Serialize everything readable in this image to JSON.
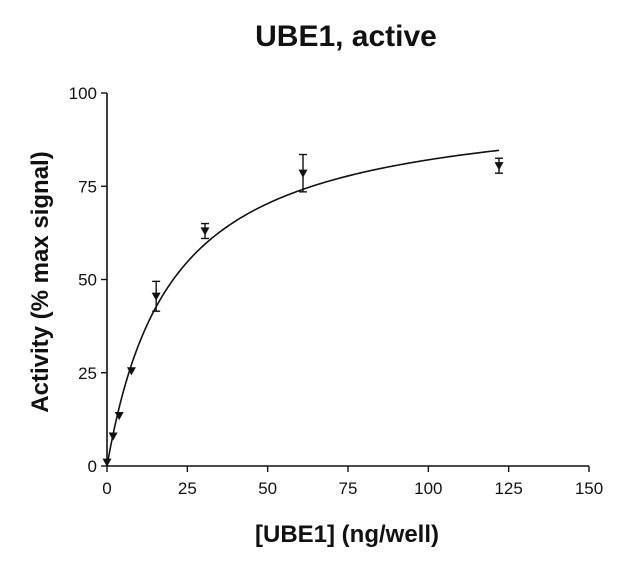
{
  "chart_data": {
    "type": "scatter",
    "title": "UBE1, active",
    "xlabel": "[UBE1] (ng/well)",
    "ylabel": "Activity (% max signal)",
    "xlim": [
      0,
      150
    ],
    "ylim": [
      0,
      100
    ],
    "x_ticks": [
      0,
      25,
      50,
      75,
      100,
      125,
      150
    ],
    "y_ticks": [
      0,
      25,
      50,
      75,
      100
    ],
    "grid": false,
    "marker": "triangle-down",
    "series": [
      {
        "points": [
          {
            "x": 0,
            "y": 1,
            "err": 0
          },
          {
            "x": 1.9,
            "y": 8,
            "err": 0
          },
          {
            "x": 3.8,
            "y": 13.5,
            "err": 0
          },
          {
            "x": 7.6,
            "y": 25.5,
            "err": 0
          },
          {
            "x": 15.3,
            "y": 45.5,
            "err": 4
          },
          {
            "x": 30.5,
            "y": 63,
            "err": 2
          },
          {
            "x": 61,
            "y": 78.5,
            "err": 5
          },
          {
            "x": 122,
            "y": 80.5,
            "err": 2
          }
        ],
        "fit": {
          "model": "hyperbolic",
          "ymax": 98.5,
          "k": 20
        }
      }
    ]
  }
}
